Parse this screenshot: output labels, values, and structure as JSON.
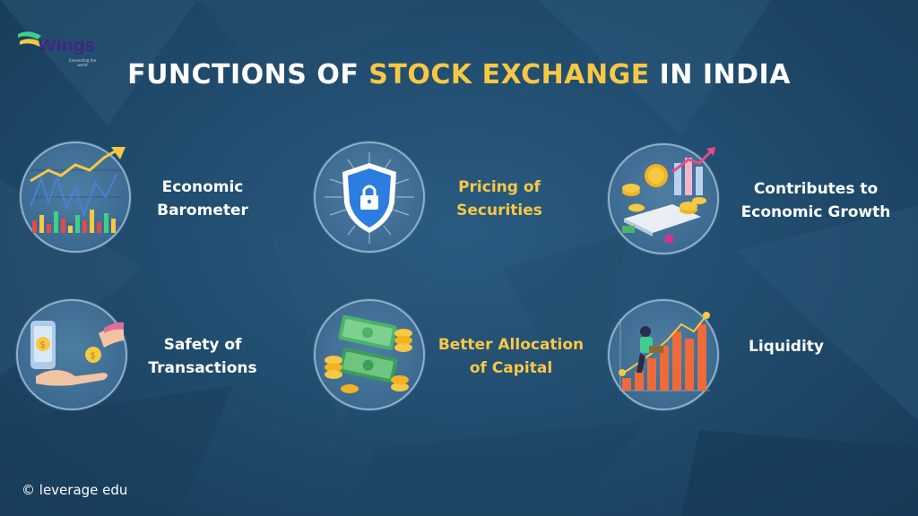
{
  "logo": {
    "brand": "Wings",
    "tagline": "Connecting the world"
  },
  "title": {
    "part1": "FUNCTIONS OF ",
    "accent": "STOCK EXCHANGE",
    "part2": " IN INDIA"
  },
  "functions": [
    {
      "line1": "Economic",
      "line2": "Barometer",
      "icon": "stock-chart-icon"
    },
    {
      "line1": "Pricing of",
      "line2": "Securities",
      "icon": "security-shield-icon"
    },
    {
      "line1": "Contributes to",
      "line2": "Economic Growth",
      "icon": "coins-phone-icon"
    },
    {
      "line1": "Safety of",
      "line2": "Transactions",
      "icon": "hand-coin-icon"
    },
    {
      "line1": "Better Allocation",
      "line2": "of Capital",
      "icon": "cash-stack-icon"
    },
    {
      "line1": "Liquidity",
      "line2": "",
      "icon": "growth-bars-icon"
    }
  ],
  "colors": {
    "background": "#1f4a6c",
    "accent": "#f6c844",
    "text": "#ffffff"
  },
  "footer": {
    "copyright_symbol": "©",
    "copyright_text": "leverage edu"
  }
}
